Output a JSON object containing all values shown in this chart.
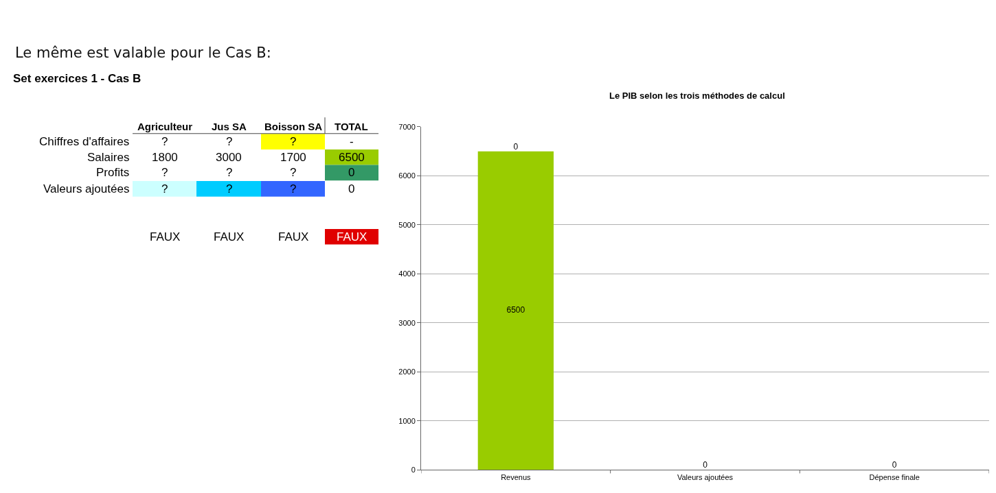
{
  "chart_data": [
    {
      "type": "other",
      "title": "Le même est valable pour le Cas B:",
      "subtitle": "Set exercices 1 - Cas B",
      "categories": [
        "Agriculteur",
        "Jus SA",
        "Boisson SA",
        "TOTAL"
      ],
      "y_categories": [
        "Chiffres d'affaires",
        "Salaires",
        "Profits",
        "Valeurs ajoutées",
        null
      ],
      "cell_labels": [
        [
          "?",
          "?",
          "?",
          "-"
        ],
        [
          "1800",
          "3000",
          "1700",
          "6500"
        ],
        [
          "?",
          "?",
          "?",
          "0"
        ],
        [
          "?",
          "?",
          "?",
          "0"
        ],
        [
          "FAUX",
          "FAUX",
          "FAUX",
          "FAUX"
        ]
      ],
      "colors": [
        [
          null,
          null,
          "#ffff00",
          null
        ],
        [
          null,
          null,
          null,
          "#99cc00"
        ],
        [
          null,
          null,
          null,
          "#339966"
        ],
        [
          "#ccffff",
          "#00ccff",
          "#3366ff",
          null
        ],
        [
          null,
          null,
          null,
          "#e00000"
        ]
      ]
    },
    {
      "type": "bar",
      "title": "Le PIB selon les trois méthodes de calcul",
      "categories": [
        "Revenus",
        "Valeurs ajoutées",
        "Dépense finale"
      ],
      "stacked": true,
      "series": [
        {
          "color": "#99cc00",
          "values": [
            6500,
            null,
            null
          ]
        },
        {
          "color": "#339966",
          "values": [
            0,
            null,
            null
          ]
        },
        {
          "color": "#3366ff",
          "values": [
            null,
            0,
            null
          ]
        },
        {
          "color": "#ffff00",
          "values": [
            null,
            null,
            0
          ]
        }
      ],
      "ylim": [
        0,
        7000
      ],
      "yticks": [
        0,
        1000,
        2000,
        3000,
        4000,
        5000,
        6000,
        7000
      ],
      "grid": "y",
      "data_labels": true
    }
  ]
}
